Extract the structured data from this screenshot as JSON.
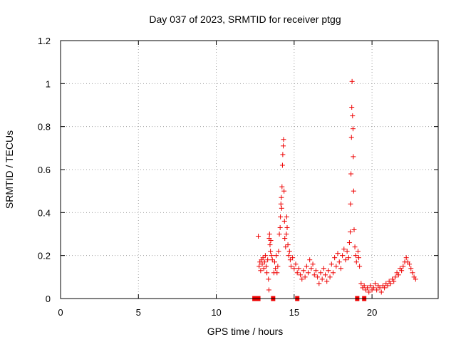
{
  "chart_data": {
    "type": "scatter",
    "title": "Day 037 of 2023, SRMTID for receiver ptgg",
    "xlabel": "GPS time / hours",
    "ylabel": "SRMTID / TECUs",
    "xlim": [
      0,
      24.25
    ],
    "ylim": [
      0,
      1.2
    ],
    "xticks": [
      0,
      5,
      10,
      15,
      20
    ],
    "yticks": [
      0,
      0.2,
      0.4,
      0.6,
      0.8,
      1,
      1.2
    ],
    "ytick_labels": [
      "0",
      "0.2",
      "0.4",
      "0.6",
      "0.8",
      "1",
      "1.2"
    ],
    "grid": true,
    "marker_color": "#ee0000",
    "series": [
      {
        "name": "SRMTID",
        "marker": "plus",
        "points": [
          [
            12.7,
            0.29
          ],
          [
            12.75,
            0.15
          ],
          [
            12.8,
            0.17
          ],
          [
            12.85,
            0.13
          ],
          [
            12.9,
            0.18
          ],
          [
            12.95,
            0.16
          ],
          [
            13.0,
            0.19
          ],
          [
            13.05,
            0.14
          ],
          [
            13.1,
            0.17
          ],
          [
            13.15,
            0.2
          ],
          [
            13.2,
            0.15
          ],
          [
            13.25,
            0.12
          ],
          [
            13.3,
            0.18
          ],
          [
            13.35,
            0.09
          ],
          [
            13.38,
            0.04
          ],
          [
            13.4,
            0.28
          ],
          [
            13.42,
            0.3
          ],
          [
            13.45,
            0.25
          ],
          [
            13.48,
            0.22
          ],
          [
            13.5,
            0.27
          ],
          [
            13.55,
            0.2
          ],
          [
            13.6,
            0.18
          ],
          [
            13.7,
            0.12
          ],
          [
            13.75,
            0.17
          ],
          [
            13.8,
            0.14
          ],
          [
            13.85,
            0.2
          ],
          [
            13.9,
            0.12
          ],
          [
            13.95,
            0.15
          ],
          [
            14.0,
            0.22
          ],
          [
            14.05,
            0.3
          ],
          [
            14.1,
            0.33
          ],
          [
            14.12,
            0.38
          ],
          [
            14.15,
            0.44
          ],
          [
            14.18,
            0.47
          ],
          [
            14.2,
            0.42
          ],
          [
            14.22,
            0.52
          ],
          [
            14.25,
            0.62
          ],
          [
            14.27,
            0.67
          ],
          [
            14.3,
            0.71
          ],
          [
            14.32,
            0.74
          ],
          [
            14.35,
            0.5
          ],
          [
            14.38,
            0.36
          ],
          [
            14.4,
            0.28
          ],
          [
            14.45,
            0.24
          ],
          [
            14.5,
            0.3
          ],
          [
            14.52,
            0.38
          ],
          [
            14.55,
            0.33
          ],
          [
            14.6,
            0.25
          ],
          [
            14.65,
            0.2
          ],
          [
            14.7,
            0.22
          ],
          [
            14.75,
            0.18
          ],
          [
            14.8,
            0.15
          ],
          [
            14.9,
            0.19
          ],
          [
            15.0,
            0.14
          ],
          [
            15.1,
            0.16
          ],
          [
            15.2,
            0.12
          ],
          [
            15.3,
            0.14
          ],
          [
            15.4,
            0.11
          ],
          [
            15.5,
            0.09
          ],
          [
            15.6,
            0.13
          ],
          [
            15.7,
            0.1
          ],
          [
            15.8,
            0.15
          ],
          [
            15.9,
            0.12
          ],
          [
            16.0,
            0.18
          ],
          [
            16.1,
            0.14
          ],
          [
            16.2,
            0.16
          ],
          [
            16.3,
            0.11
          ],
          [
            16.4,
            0.13
          ],
          [
            16.5,
            0.1
          ],
          [
            16.6,
            0.07
          ],
          [
            16.7,
            0.12
          ],
          [
            16.8,
            0.09
          ],
          [
            16.9,
            0.14
          ],
          [
            17.0,
            0.11
          ],
          [
            17.1,
            0.08
          ],
          [
            17.2,
            0.13
          ],
          [
            17.3,
            0.1
          ],
          [
            17.4,
            0.16
          ],
          [
            17.5,
            0.12
          ],
          [
            17.6,
            0.19
          ],
          [
            17.7,
            0.15
          ],
          [
            17.8,
            0.21
          ],
          [
            17.9,
            0.17
          ],
          [
            18.0,
            0.14
          ],
          [
            18.1,
            0.2
          ],
          [
            18.2,
            0.23
          ],
          [
            18.3,
            0.18
          ],
          [
            18.4,
            0.22
          ],
          [
            18.5,
            0.19
          ],
          [
            18.55,
            0.26
          ],
          [
            18.6,
            0.31
          ],
          [
            18.62,
            0.44
          ],
          [
            18.65,
            0.58
          ],
          [
            18.68,
            0.75
          ],
          [
            18.7,
            0.89
          ],
          [
            18.72,
            1.01
          ],
          [
            18.75,
            0.85
          ],
          [
            18.78,
            0.79
          ],
          [
            18.8,
            0.66
          ],
          [
            18.82,
            0.5
          ],
          [
            18.85,
            0.32
          ],
          [
            18.9,
            0.24
          ],
          [
            18.95,
            0.2
          ],
          [
            19.0,
            0.17
          ],
          [
            19.1,
            0.22
          ],
          [
            19.15,
            0.19
          ],
          [
            19.2,
            0.15
          ],
          [
            19.3,
            0.07
          ],
          [
            19.4,
            0.05
          ],
          [
            19.5,
            0.06
          ],
          [
            19.6,
            0.04
          ],
          [
            19.7,
            0.05
          ],
          [
            19.8,
            0.03
          ],
          [
            19.9,
            0.06
          ],
          [
            20.0,
            0.04
          ],
          [
            20.1,
            0.05
          ],
          [
            20.2,
            0.07
          ],
          [
            20.3,
            0.04
          ],
          [
            20.4,
            0.06
          ],
          [
            20.5,
            0.05
          ],
          [
            20.6,
            0.03
          ],
          [
            20.7,
            0.06
          ],
          [
            20.8,
            0.05
          ],
          [
            20.9,
            0.07
          ],
          [
            21.0,
            0.06
          ],
          [
            21.1,
            0.08
          ],
          [
            21.2,
            0.07
          ],
          [
            21.3,
            0.09
          ],
          [
            21.4,
            0.08
          ],
          [
            21.5,
            0.1
          ],
          [
            21.6,
            0.12
          ],
          [
            21.7,
            0.11
          ],
          [
            21.8,
            0.14
          ],
          [
            21.9,
            0.13
          ],
          [
            22.0,
            0.15
          ],
          [
            22.1,
            0.17
          ],
          [
            22.2,
            0.19
          ],
          [
            22.3,
            0.17
          ],
          [
            22.4,
            0.16
          ],
          [
            22.5,
            0.14
          ],
          [
            22.6,
            0.12
          ],
          [
            22.7,
            0.1
          ],
          [
            22.8,
            0.09
          ]
        ]
      },
      {
        "name": "zero-level",
        "marker": "square",
        "points": [
          [
            12.45,
            0
          ],
          [
            12.7,
            0
          ],
          [
            13.65,
            0
          ],
          [
            15.2,
            0
          ],
          [
            19.05,
            0
          ],
          [
            19.5,
            0
          ]
        ]
      }
    ]
  }
}
